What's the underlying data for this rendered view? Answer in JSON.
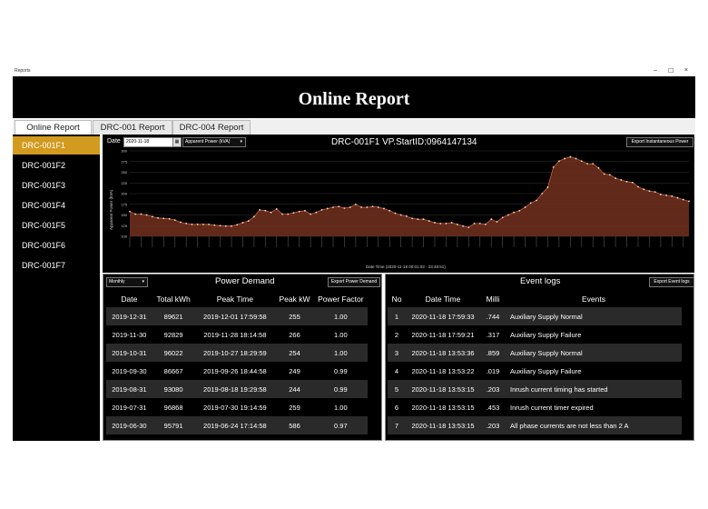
{
  "window": {
    "title": "Reports",
    "minimize": "–",
    "maximize": "☐",
    "close": "×"
  },
  "banner": {
    "title": "Online Report"
  },
  "tabs": [
    {
      "label": "Online Report"
    },
    {
      "label": "DRC-001 Report"
    },
    {
      "label": "DRC-004 Report"
    }
  ],
  "sidebar": {
    "items": [
      {
        "label": "DRC-001F1"
      },
      {
        "label": "DRC-001F2"
      },
      {
        "label": "DRC-001F3"
      },
      {
        "label": "DRC-001F4"
      },
      {
        "label": "DRC-001F5"
      },
      {
        "label": "DRC-001F6"
      },
      {
        "label": "DRC-001F7"
      }
    ]
  },
  "top_panel": {
    "date_label": "Date",
    "date_value": "2020-11-18",
    "calendar_icon": "calendar-icon",
    "parameter_value": "Apparent Power (kVA)",
    "header": "DRC-001F1 VP.StartID:0964147134",
    "export_label": "Export Instantaneous Power"
  },
  "chart_data": {
    "type": "area",
    "xlabel": "Date Time (2020-11-18 00:01:03 - 23:48:51)",
    "ylabel": "Apparent Power (kVA)",
    "ylim": [
      100,
      300
    ],
    "yticks": [
      100,
      125,
      150,
      175,
      200,
      225,
      250,
      275,
      300
    ],
    "grid": true,
    "colors": {
      "fill": "#6b2e1c",
      "line": "#c9603a",
      "marker": "#f0e0d0"
    },
    "values": [
      158,
      152,
      152,
      150,
      146,
      143,
      142,
      141,
      138,
      133,
      130,
      128,
      128,
      128,
      128,
      126,
      125,
      124,
      124,
      127,
      132,
      136,
      146,
      162,
      160,
      156,
      164,
      152,
      152,
      155,
      158,
      160,
      152,
      156,
      162,
      165,
      168,
      170,
      166,
      168,
      175,
      168,
      168,
      170,
      168,
      165,
      160,
      154,
      150,
      147,
      142,
      140,
      140,
      136,
      132,
      130,
      130,
      132,
      128,
      124,
      121,
      130,
      130,
      128,
      140,
      134,
      144,
      150,
      156,
      160,
      168,
      178,
      184,
      200,
      215,
      262,
      276,
      282,
      286,
      282,
      276,
      270,
      270,
      260,
      246,
      244,
      236,
      232,
      228,
      226,
      216,
      210,
      206,
      204,
      198,
      196,
      194,
      190,
      186,
      182
    ]
  },
  "power_demand": {
    "period": "Monthly",
    "title": "Power Demand",
    "export_label": "Export Power Demand",
    "columns": [
      "Date",
      "Total kWh",
      "Peak Time",
      "Peak kW",
      "Power Factor"
    ],
    "rows": [
      [
        "2019-12-31",
        "89621",
        "2019-12-01 17:59:58",
        "255",
        "1.00"
      ],
      [
        "2019-11-30",
        "92829",
        "2019-11-28 18:14:58",
        "266",
        "1.00"
      ],
      [
        "2019-10-31",
        "96022",
        "2019-10-27 18:29:59",
        "254",
        "1.00"
      ],
      [
        "2019-09-30",
        "86667",
        "2019-09-26 18:44:58",
        "249",
        "0.99"
      ],
      [
        "2019-08-31",
        "93080",
        "2019-08-18 19:29:58",
        "244",
        "0.99"
      ],
      [
        "2019-07-31",
        "96868",
        "2019-07-30 19:14:59",
        "259",
        "1.00"
      ],
      [
        "2019-06-30",
        "95791",
        "2019-06-24 17:14:58",
        "586",
        "0.97"
      ]
    ]
  },
  "event_logs": {
    "title": "Event logs",
    "export_label": "Export Event logs",
    "columns": [
      "No",
      "Date Time",
      "Milli",
      "Events"
    ],
    "rows": [
      [
        "1",
        "2020-11-18 17:59:33",
        ".744",
        "Auxiliary Supply Normal"
      ],
      [
        "2",
        "2020-11-18 17:59:21",
        ".317",
        "Auxiliary Supply Failure"
      ],
      [
        "3",
        "2020-11-18 13:53:36",
        ".859",
        "Auxiliary Supply Normal"
      ],
      [
        "4",
        "2020-11-18 13:53:22",
        ".019",
        "Auxiliary Supply Failure"
      ],
      [
        "5",
        "2020-11-18 13:53:15",
        ".203",
        "Inrush current timing has started"
      ],
      [
        "6",
        "2020-11-18 13:53:15",
        ".453",
        "Inrush current timer expired"
      ],
      [
        "7",
        "2020-11-18 13:53:15",
        ".203",
        "All phase currents are not less than 2 A"
      ]
    ]
  }
}
